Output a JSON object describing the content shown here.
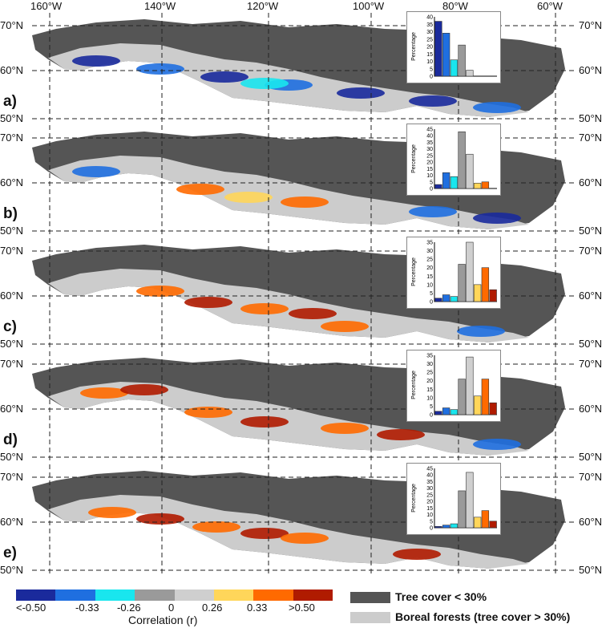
{
  "top_longitudes": [
    "160°W",
    "140°W",
    "120°W",
    "100°W",
    "80°W",
    "60°W"
  ],
  "latitudes": {
    "north": "70°N",
    "mid": "60°N",
    "south": "50°N"
  },
  "panels": [
    {
      "id": "a",
      "label": "a)",
      "y_max": 40,
      "y_ticks": [
        "40",
        "35",
        "30",
        "25",
        "20",
        "15",
        "10",
        "5",
        "0"
      ],
      "bars": [
        37,
        29,
        11,
        21,
        4,
        0,
        0,
        0
      ]
    },
    {
      "id": "b",
      "label": "b)",
      "y_max": 45,
      "y_ticks": [
        "45",
        "40",
        "35",
        "30",
        "25",
        "20",
        "15",
        "10",
        "5",
        "0"
      ],
      "bars": [
        3,
        12,
        9,
        43,
        26,
        4,
        5,
        0
      ]
    },
    {
      "id": "c",
      "label": "c)",
      "y_max": 35,
      "y_ticks": [
        "35",
        "30",
        "25",
        "20",
        "15",
        "10",
        "5",
        "0"
      ],
      "bars": [
        2,
        4,
        3,
        22,
        35,
        10,
        20,
        7
      ]
    },
    {
      "id": "d",
      "label": "d)",
      "y_max": 35,
      "y_ticks": [
        "35",
        "30",
        "25",
        "20",
        "15",
        "10",
        "5",
        "0"
      ],
      "bars": [
        2,
        4,
        3,
        21,
        34,
        11,
        21,
        7
      ]
    },
    {
      "id": "e",
      "label": "e)",
      "y_max": 45,
      "y_ticks": [
        "45",
        "40",
        "35",
        "30",
        "25",
        "20",
        "15",
        "10",
        "5",
        "0"
      ],
      "bars": [
        1,
        2,
        3,
        28,
        42,
        8,
        13,
        5
      ]
    }
  ],
  "inset_ylabel": "Percentage",
  "colorbar": {
    "colors": [
      "#1a2a9c",
      "#1f6fe0",
      "#19e6ee",
      "#9a9a9a",
      "#cfcfcf",
      "#ffd65a",
      "#ff6a00",
      "#b01b00"
    ],
    "tick_labels": [
      "<-0.50",
      "-0.33",
      "-0.26",
      "0",
      "0.26",
      "0.33",
      ">0.50"
    ],
    "title": "Correlation (r)"
  },
  "legend": {
    "dark": {
      "label": "Tree cover < 30%",
      "color": "#555555"
    },
    "light": {
      "label": "Boreal forests (tree cover > 30%)",
      "color": "#cccccc"
    }
  }
}
